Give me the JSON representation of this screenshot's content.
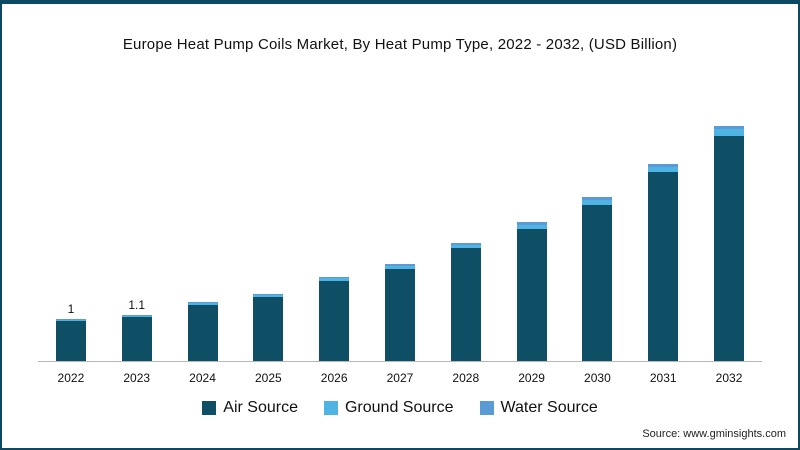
{
  "chart_data": {
    "type": "bar",
    "stacked": true,
    "title": "Europe Heat Pump Coils Market, By Heat Pump Type, 2022 - 2032, (USD Billion)",
    "categories": [
      "2022",
      "2023",
      "2024",
      "2025",
      "2026",
      "2027",
      "2028",
      "2029",
      "2030",
      "2031",
      "2032"
    ],
    "series": [
      {
        "name": "Air Source",
        "color": "#0e4f66",
        "values": [
          0.95,
          1.05,
          1.34,
          1.53,
          1.91,
          2.2,
          2.68,
          3.15,
          3.72,
          4.49,
          5.35
        ]
      },
      {
        "name": "Ground Source",
        "color": "#4fb3e3",
        "values": [
          0.03,
          0.03,
          0.04,
          0.05,
          0.06,
          0.07,
          0.08,
          0.1,
          0.12,
          0.14,
          0.17
        ]
      },
      {
        "name": "Water Source",
        "color": "#5b9bd5",
        "values": [
          0.02,
          0.02,
          0.02,
          0.02,
          0.03,
          0.03,
          0.04,
          0.05,
          0.06,
          0.07,
          0.08
        ]
      }
    ],
    "totals": [
      1.0,
      1.1,
      1.4,
      1.6,
      2.0,
      2.3,
      2.8,
      3.3,
      3.9,
      4.7,
      5.6
    ],
    "point_labels": [
      "1",
      "1.1",
      "",
      "",
      "",
      "",
      "",
      "",
      "",
      "",
      ""
    ],
    "ylim": [
      0,
      6.2
    ],
    "grid": false,
    "legend_position": "bottom",
    "source": "Source: www.gminsights.com"
  }
}
